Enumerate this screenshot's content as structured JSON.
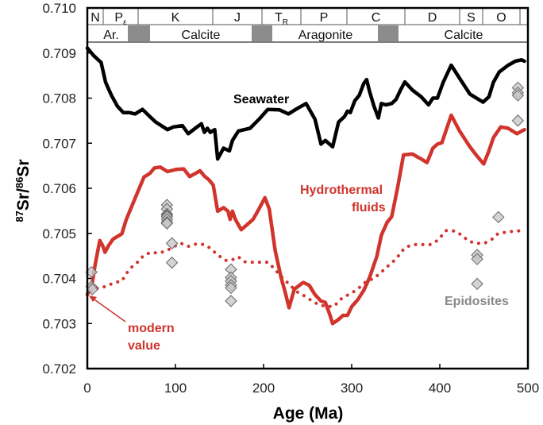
{
  "chart_data": {
    "type": "line",
    "xlabel": "Age (Ma)",
    "ylabel": {
      "sup1": "87",
      "base1": "Sr/",
      "sup2": "86",
      "base2": "Sr"
    },
    "xlim": [
      0,
      500
    ],
    "ylim": [
      0.702,
      0.71
    ],
    "x_ticks": [
      "0",
      "100",
      "200",
      "300",
      "400",
      "500"
    ],
    "y_ticks": [
      "0.710",
      "0.709",
      "0.708",
      "0.707",
      "0.706",
      "0.705",
      "0.704",
      "0.703",
      "0.702"
    ],
    "grid": false,
    "periods": [
      {
        "main": "N",
        "sub": ""
      },
      {
        "main": "P",
        "sub": "ε"
      },
      {
        "main": "K",
        "sub": ""
      },
      {
        "main": "J",
        "sub": ""
      },
      {
        "main": "T",
        "sub": "R"
      },
      {
        "main": "P",
        "sub": ""
      },
      {
        "main": "C",
        "sub": ""
      },
      {
        "main": "D",
        "sub": ""
      },
      {
        "main": "S",
        "sub": ""
      },
      {
        "main": "O",
        "sub": ""
      },
      {
        "main": "",
        "sub": ""
      }
    ],
    "seas": [
      "Ar.",
      "Calcite",
      "Aragonite",
      "Calcite"
    ],
    "colors": {
      "seawater": "#000000",
      "hydrothermal": "#d0342c",
      "epidosites": "#c8c8c8",
      "sea_transition": "#8c8c8c"
    },
    "annotations": {
      "seawater": "Seawater",
      "hydro1": "Hydrothermal",
      "hydro2": "fluids",
      "epidosites": "Epidosites",
      "modern1": "modern",
      "modern2": "value"
    },
    "series": [
      {
        "name": "Seawater",
        "style": "solid",
        "color": "#000000",
        "points": [
          [
            0,
            0.70911
          ],
          [
            7.4,
            0.70894
          ],
          [
            15.7,
            0.70879
          ],
          [
            20.7,
            0.70835
          ],
          [
            27.4,
            0.70806
          ],
          [
            34.1,
            0.70782
          ],
          [
            40.8,
            0.70768
          ],
          [
            47.5,
            0.70768
          ],
          [
            54.2,
            0.70765
          ],
          [
            62.6,
            0.70775
          ],
          [
            71,
            0.70759
          ],
          [
            77.6,
            0.70747
          ],
          [
            91,
            0.7073
          ],
          [
            97.7,
            0.70736
          ],
          [
            107.8,
            0.70739
          ],
          [
            114.5,
            0.70721
          ],
          [
            124.5,
            0.70736
          ],
          [
            129.5,
            0.70743
          ],
          [
            132.9,
            0.70724
          ],
          [
            136.2,
            0.70733
          ],
          [
            139.6,
            0.70724
          ],
          [
            144.6,
            0.7073
          ],
          [
            147.9,
            0.70665
          ],
          [
            154.6,
            0.70689
          ],
          [
            161.3,
            0.70683
          ],
          [
            164.7,
            0.70706
          ],
          [
            171.4,
            0.70727
          ],
          [
            184.7,
            0.70733
          ],
          [
            194.8,
            0.70753
          ],
          [
            204.8,
            0.70775
          ],
          [
            218.2,
            0.70774
          ],
          [
            228.2,
            0.70765
          ],
          [
            238.3,
            0.70777
          ],
          [
            248.3,
            0.70788
          ],
          [
            258.4,
            0.70753
          ],
          [
            265.1,
            0.70698
          ],
          [
            270.1,
            0.70706
          ],
          [
            278.4,
            0.70692
          ],
          [
            285.1,
            0.70747
          ],
          [
            291.8,
            0.70759
          ],
          [
            295.2,
            0.70771
          ],
          [
            298.5,
            0.70768
          ],
          [
            303.5,
            0.70794
          ],
          [
            308.6,
            0.70806
          ],
          [
            313.6,
            0.70832
          ],
          [
            316.9,
            0.70841
          ],
          [
            320.3,
            0.70815
          ],
          [
            325.3,
            0.70782
          ],
          [
            330.3,
            0.70756
          ],
          [
            333.7,
            0.70788
          ],
          [
            338.7,
            0.70785
          ],
          [
            345.4,
            0.70788
          ],
          [
            350.4,
            0.70797
          ],
          [
            355.4,
            0.70818
          ],
          [
            360.4,
            0.70836
          ],
          [
            368.8,
            0.70818
          ],
          [
            378.8,
            0.70803
          ],
          [
            387.2,
            0.70785
          ],
          [
            392.2,
            0.708
          ],
          [
            397.3,
            0.708
          ],
          [
            403.9,
            0.70835
          ],
          [
            413,
            0.70873
          ],
          [
            422.4,
            0.70844
          ],
          [
            434.1,
            0.70809
          ],
          [
            449.1,
            0.70791
          ],
          [
            455.8,
            0.70803
          ],
          [
            460.8,
            0.70835
          ],
          [
            467.5,
            0.70858
          ],
          [
            477.6,
            0.70873
          ],
          [
            485.9,
            0.70882
          ],
          [
            492.6,
            0.70885
          ],
          [
            496,
            0.70882
          ]
        ]
      },
      {
        "name": "Hydrothermal fluids",
        "style": "solid",
        "color": "#d0342c",
        "points": [
          [
            0,
            0.70364
          ],
          [
            5.7,
            0.70391
          ],
          [
            9,
            0.70432
          ],
          [
            14.1,
            0.70484
          ],
          [
            17.4,
            0.70473
          ],
          [
            20.1,
            0.70458
          ],
          [
            24.1,
            0.70473
          ],
          [
            29.1,
            0.70487
          ],
          [
            39.2,
            0.70499
          ],
          [
            44.2,
            0.70531
          ],
          [
            54.2,
            0.70578
          ],
          [
            64.3,
            0.70625
          ],
          [
            71,
            0.70633
          ],
          [
            76,
            0.70645
          ],
          [
            82.7,
            0.70647
          ],
          [
            91,
            0.70637
          ],
          [
            101.1,
            0.70642
          ],
          [
            109.4,
            0.70643
          ],
          [
            116.1,
            0.70626
          ],
          [
            122.8,
            0.70633
          ],
          [
            127.8,
            0.70639
          ],
          [
            132.9,
            0.70627
          ],
          [
            137.9,
            0.70619
          ],
          [
            142.9,
            0.70607
          ],
          [
            147.9,
            0.70549
          ],
          [
            154.6,
            0.70557
          ],
          [
            159.6,
            0.70549
          ],
          [
            162,
            0.70531
          ],
          [
            164.7,
            0.70549
          ],
          [
            168,
            0.70531
          ],
          [
            174.7,
            0.70508
          ],
          [
            188.1,
            0.70531
          ],
          [
            194.8,
            0.70554
          ],
          [
            201.5,
            0.70579
          ],
          [
            206.5,
            0.70554
          ],
          [
            213.2,
            0.70461
          ],
          [
            219.9,
            0.70402
          ],
          [
            224.9,
            0.70367
          ],
          [
            228.9,
            0.70335
          ],
          [
            234.9,
            0.70376
          ],
          [
            245,
            0.70391
          ],
          [
            251.7,
            0.70385
          ],
          [
            258.4,
            0.70364
          ],
          [
            265.1,
            0.7035
          ],
          [
            270.1,
            0.70347
          ],
          [
            275.1,
            0.7032
          ],
          [
            278.4,
            0.703
          ],
          [
            285.1,
            0.70309
          ],
          [
            290.2,
            0.70318
          ],
          [
            295.2,
            0.70318
          ],
          [
            300.2,
            0.70338
          ],
          [
            306.9,
            0.70353
          ],
          [
            313.6,
            0.70373
          ],
          [
            320.3,
            0.70402
          ],
          [
            328.6,
            0.70449
          ],
          [
            333.7,
            0.70496
          ],
          [
            340.4,
            0.70525
          ],
          [
            345.4,
            0.70537
          ],
          [
            352.1,
            0.70601
          ],
          [
            358.8,
            0.70674
          ],
          [
            368.8,
            0.70676
          ],
          [
            378.8,
            0.70665
          ],
          [
            385.5,
            0.70657
          ],
          [
            392.2,
            0.70689
          ],
          [
            397.3,
            0.70698
          ],
          [
            402.3,
            0.70701
          ],
          [
            413,
            0.70762
          ],
          [
            422.4,
            0.70727
          ],
          [
            434.1,
            0.70692
          ],
          [
            442.4,
            0.70671
          ],
          [
            449.8,
            0.70654
          ],
          [
            455.8,
            0.70683
          ],
          [
            460.8,
            0.70712
          ],
          [
            469.2,
            0.70736
          ],
          [
            477.6,
            0.70733
          ],
          [
            487.6,
            0.70721
          ],
          [
            496,
            0.7073
          ]
        ]
      },
      {
        "style": "dotted",
        "color": "#d0342c",
        "points": [
          [
            4,
            0.7037
          ],
          [
            12.4,
            0.70379
          ],
          [
            20.7,
            0.70382
          ],
          [
            30.8,
            0.70391
          ],
          [
            39.2,
            0.70394
          ],
          [
            44.2,
            0.70411
          ],
          [
            50.9,
            0.70426
          ],
          [
            57.6,
            0.70437
          ],
          [
            64.3,
            0.70452
          ],
          [
            72.6,
            0.70458
          ],
          [
            81,
            0.70456
          ],
          [
            89.4,
            0.70461
          ],
          [
            97.7,
            0.7047
          ],
          [
            106.1,
            0.70478
          ],
          [
            114.5,
            0.70471
          ],
          [
            124.5,
            0.70477
          ],
          [
            132.9,
            0.70475
          ],
          [
            139.6,
            0.70467
          ],
          [
            146.3,
            0.70455
          ],
          [
            156.3,
            0.7044
          ],
          [
            163,
            0.7044
          ],
          [
            171.4,
            0.70448
          ],
          [
            178,
            0.70437
          ],
          [
            186.4,
            0.70436
          ],
          [
            194.8,
            0.70436
          ],
          [
            204.8,
            0.70436
          ],
          [
            211.5,
            0.70423
          ],
          [
            218.2,
            0.70408
          ],
          [
            224.9,
            0.70395
          ],
          [
            231.6,
            0.70382
          ],
          [
            238.3,
            0.7037
          ],
          [
            246.7,
            0.70361
          ],
          [
            255,
            0.7035
          ],
          [
            263.4,
            0.70341
          ],
          [
            271.8,
            0.70338
          ],
          [
            280.1,
            0.70338
          ],
          [
            286.8,
            0.70353
          ],
          [
            293.5,
            0.70361
          ],
          [
            301.9,
            0.7037
          ],
          [
            310.2,
            0.70382
          ],
          [
            316.9,
            0.70394
          ],
          [
            325.3,
            0.704
          ],
          [
            335.3,
            0.70417
          ],
          [
            343.7,
            0.70432
          ],
          [
            350.4,
            0.70443
          ],
          [
            357.1,
            0.70461
          ],
          [
            362.1,
            0.7047
          ],
          [
            370.5,
            0.70475
          ],
          [
            380.5,
            0.70475
          ],
          [
            388.9,
            0.70475
          ],
          [
            397.3,
            0.70484
          ],
          [
            407.3,
            0.70506
          ],
          [
            417.3,
            0.70505
          ],
          [
            425.7,
            0.70495
          ],
          [
            432.4,
            0.70483
          ],
          [
            440.8,
            0.70478
          ],
          [
            450.8,
            0.70478
          ],
          [
            459.2,
            0.70487
          ],
          [
            465.9,
            0.70499
          ],
          [
            475.9,
            0.70503
          ],
          [
            485.9,
            0.70505
          ],
          [
            494.3,
            0.70506
          ]
        ]
      }
    ],
    "epidosites": [
      [
        4.7,
        0.70414
      ],
      [
        4.7,
        0.70382
      ],
      [
        5.7,
        0.70376
      ],
      [
        90.4,
        0.70563
      ],
      [
        90.4,
        0.70554
      ],
      [
        90.4,
        0.70543
      ],
      [
        90.4,
        0.7054
      ],
      [
        90.4,
        0.70537
      ],
      [
        90.4,
        0.70531
      ],
      [
        90.4,
        0.70525
      ],
      [
        90.4,
        0.70522
      ],
      [
        96,
        0.70478
      ],
      [
        96,
        0.70435
      ],
      [
        163,
        0.7042
      ],
      [
        163,
        0.70402
      ],
      [
        163,
        0.70394
      ],
      [
        163,
        0.70385
      ],
      [
        163,
        0.70379
      ],
      [
        163,
        0.7035
      ],
      [
        442.4,
        0.70452
      ],
      [
        442.4,
        0.70443
      ],
      [
        442.4,
        0.70388
      ],
      [
        466.5,
        0.70536
      ],
      [
        488.6,
        0.70823
      ],
      [
        488.6,
        0.70812
      ],
      [
        488.6,
        0.70806
      ],
      [
        488.6,
        0.7075
      ]
    ]
  }
}
